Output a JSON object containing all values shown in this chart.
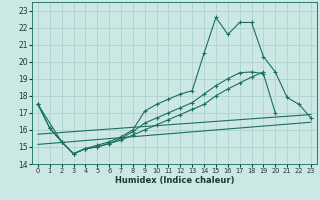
{
  "xlabel": "Humidex (Indice chaleur)",
  "xlim": [
    -0.5,
    23.5
  ],
  "ylim": [
    14,
    23.5
  ],
  "xticks": [
    0,
    1,
    2,
    3,
    4,
    5,
    6,
    7,
    8,
    9,
    10,
    11,
    12,
    13,
    14,
    15,
    16,
    17,
    18,
    19,
    20,
    21,
    22,
    23
  ],
  "yticks": [
    14,
    15,
    16,
    17,
    18,
    19,
    20,
    21,
    22,
    23
  ],
  "background_color": "#cce8e4",
  "grid_color": "#aacfcb",
  "line_color": "#1a6e62",
  "line1_x": [
    0,
    1,
    2,
    3,
    4,
    5,
    6,
    7,
    8,
    9,
    10,
    11,
    12,
    13,
    14,
    15,
    16,
    17,
    18,
    19,
    20,
    21,
    22,
    23
  ],
  "line1_y": [
    17.5,
    16.1,
    15.3,
    14.6,
    14.9,
    15.1,
    15.3,
    15.6,
    16.0,
    17.1,
    17.5,
    17.8,
    18.1,
    18.3,
    20.5,
    22.6,
    21.6,
    22.3,
    22.3,
    20.3,
    19.4,
    17.9,
    17.5,
    16.7
  ],
  "line2_x": [
    0,
    1,
    2,
    3,
    4,
    5,
    6,
    7,
    8,
    9,
    10,
    11,
    12,
    13,
    14,
    15,
    16,
    17,
    18,
    19,
    20
  ],
  "line2_y": [
    17.5,
    16.1,
    15.3,
    14.6,
    14.9,
    15.0,
    15.2,
    15.5,
    15.9,
    16.4,
    16.7,
    17.0,
    17.3,
    17.6,
    18.1,
    18.6,
    19.0,
    19.35,
    19.4,
    19.3,
    17.0
  ],
  "line3_x": [
    0,
    2,
    3,
    4,
    5,
    6,
    7,
    8,
    9,
    10,
    11,
    12,
    13,
    14,
    15,
    16,
    17,
    18,
    19
  ],
  "line3_y": [
    17.5,
    15.3,
    14.6,
    14.9,
    15.0,
    15.2,
    15.4,
    15.7,
    16.0,
    16.3,
    16.6,
    16.9,
    17.2,
    17.5,
    18.0,
    18.4,
    18.75,
    19.1,
    19.4
  ],
  "line4_x": [
    0,
    23
  ],
  "line4_y": [
    15.75,
    16.9
  ],
  "line5_x": [
    0,
    23
  ],
  "line5_y": [
    15.15,
    16.45
  ]
}
